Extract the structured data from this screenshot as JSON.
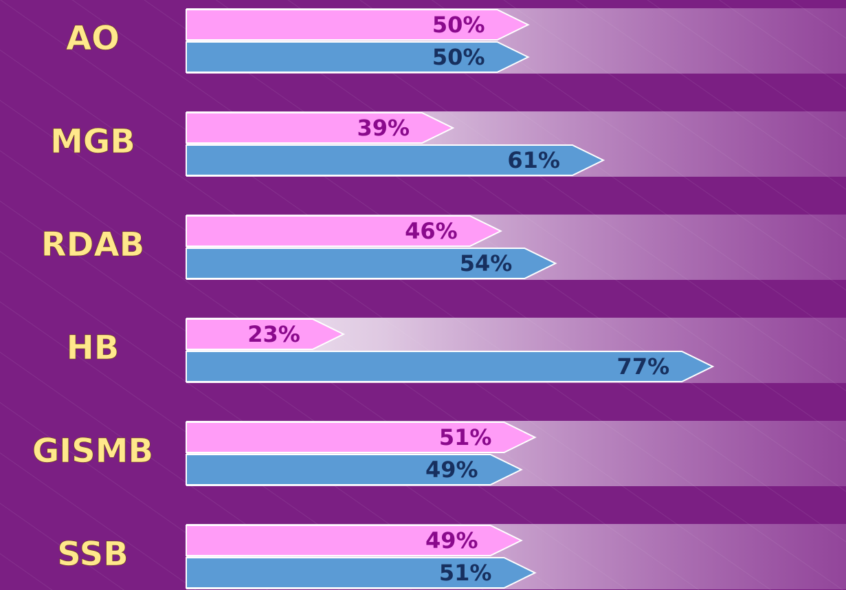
{
  "chart_data": {
    "type": "bar",
    "categories": [
      "AO",
      "MGB",
      "RDAB",
      "HB",
      "GISMB",
      "SSB"
    ],
    "series": [
      {
        "color": "#ff9cf7",
        "label_color": "#8a0a8c",
        "values": [
          50,
          39,
          46,
          23,
          51,
          49
        ],
        "value_labels": [
          "50%",
          "39%",
          "46%",
          "23%",
          "51%",
          "49%"
        ]
      },
      {
        "color": "#5b9bd5",
        "label_color": "#17305f",
        "values": [
          50,
          61,
          54,
          77,
          49,
          51
        ],
        "value_labels": [
          "50%",
          "61%",
          "54%",
          "77%",
          "49%",
          "51%"
        ]
      }
    ]
  }
}
